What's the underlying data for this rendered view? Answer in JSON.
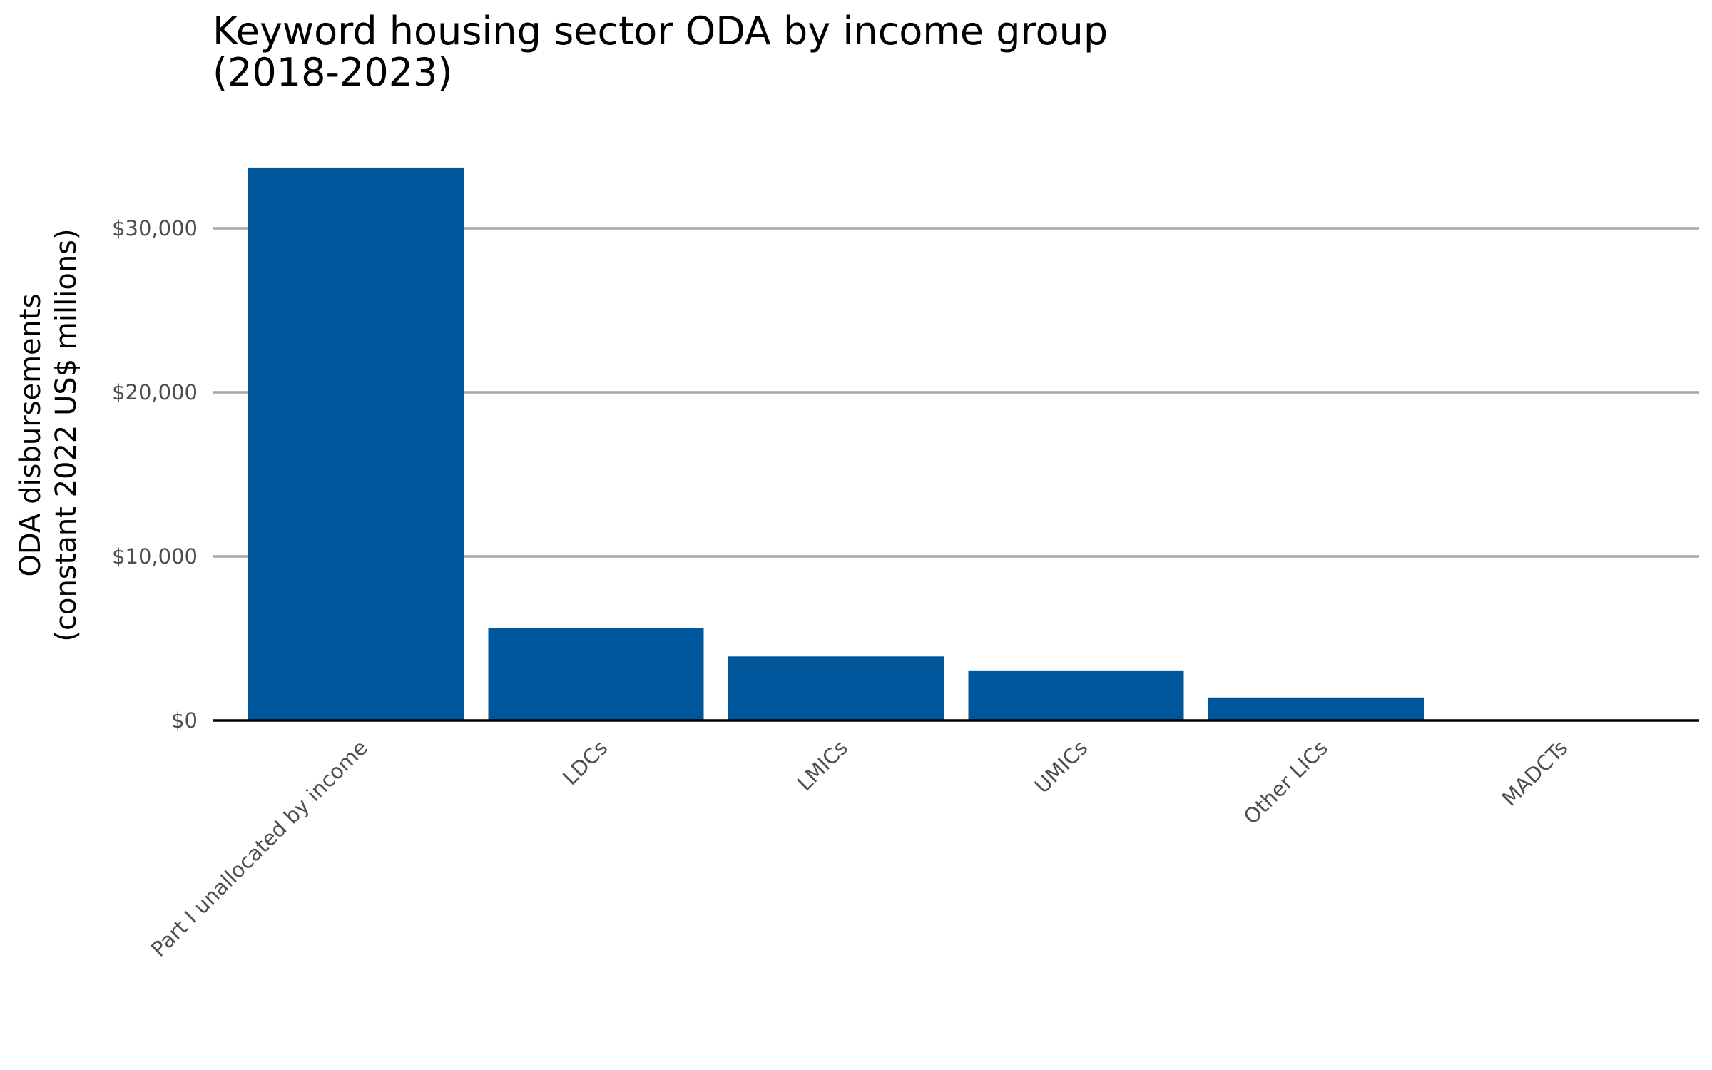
{
  "chart_data": {
    "type": "bar",
    "title_lines": [
      "Keyword housing sector ODA by income group",
      "(2018-2023)"
    ],
    "ylabel_lines": [
      "ODA disbursements",
      "(constant 2022 US$ millions)"
    ],
    "xlabel": "",
    "categories": [
      "Part I unallocated by income",
      "LDCs",
      "LMICs",
      "UMICs",
      "Other LICs",
      "MADCTs"
    ],
    "values": [
      33700,
      5650,
      3900,
      3050,
      1400,
      0
    ],
    "ylim": [
      0,
      34000
    ],
    "yticks": [
      0,
      10000,
      20000,
      30000
    ],
    "ytick_labels": [
      "$0",
      "$10,000",
      "$20,000",
      "$30,000"
    ],
    "grid": "horizontal",
    "legend": "none",
    "bar_color": "#00569a"
  }
}
